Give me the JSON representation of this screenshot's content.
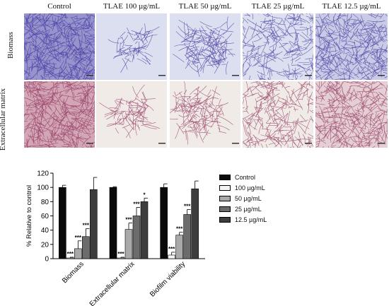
{
  "figure": {
    "columns": [
      {
        "label": "Control"
      },
      {
        "label": "TLAE 100 µg/mL"
      },
      {
        "label": "TLAE 50 µg/mL"
      },
      {
        "label": "TLAE 25 µg/mL"
      },
      {
        "label": "TLAE 12.5 µg/mL"
      }
    ],
    "rows": [
      {
        "label": "Biomass",
        "bg": "#dcdff0",
        "stain": "#3c2f9a"
      },
      {
        "label": "Extracellular matrix",
        "bg": "#f1ebe8",
        "stain": "#8c2f5a"
      }
    ],
    "micrograph_density": {
      "Biomass": [
        1.0,
        0.08,
        0.3,
        0.55,
        0.85
      ],
      "Extracellular matrix": [
        1.0,
        0.15,
        0.3,
        0.6,
        0.85
      ]
    }
  },
  "chart_data": {
    "type": "bar",
    "categories": [
      "Biomass",
      "Extracellular matrix",
      "Biofilm viability"
    ],
    "ylabel": "% Relative to control",
    "ylim": [
      0,
      120
    ],
    "yticks": [
      0,
      20,
      40,
      60,
      80,
      100,
      120
    ],
    "legend_position": "right",
    "series": [
      {
        "name": "Control",
        "color": "#0a0a0a",
        "values": [
          100,
          100,
          100
        ],
        "errors": [
          3,
          1,
          5
        ],
        "sig": [
          "",
          "",
          ""
        ]
      },
      {
        "name": "100 µg/mL",
        "color": "#f4f4f4",
        "values": [
          1,
          1,
          5
        ],
        "errors": [
          1,
          1,
          4
        ],
        "sig": [
          "***",
          "***",
          "***"
        ]
      },
      {
        "name": "50 µg/mL",
        "color": "#a9a9a9",
        "values": [
          14,
          41,
          33
        ],
        "errors": [
          11,
          9,
          4
        ],
        "sig": [
          "***",
          "***",
          "***"
        ]
      },
      {
        "name": "25 µg/mL",
        "color": "#6c6c6c",
        "values": [
          31,
          60,
          62
        ],
        "errors": [
          11,
          12,
          7
        ],
        "sig": [
          "***",
          "***",
          "***"
        ]
      },
      {
        "name": "12.5 µg/mL",
        "color": "#3d3d3d",
        "values": [
          97,
          80,
          98
        ],
        "errors": [
          17,
          5,
          11
        ],
        "sig": [
          "",
          "*",
          ""
        ]
      }
    ]
  }
}
